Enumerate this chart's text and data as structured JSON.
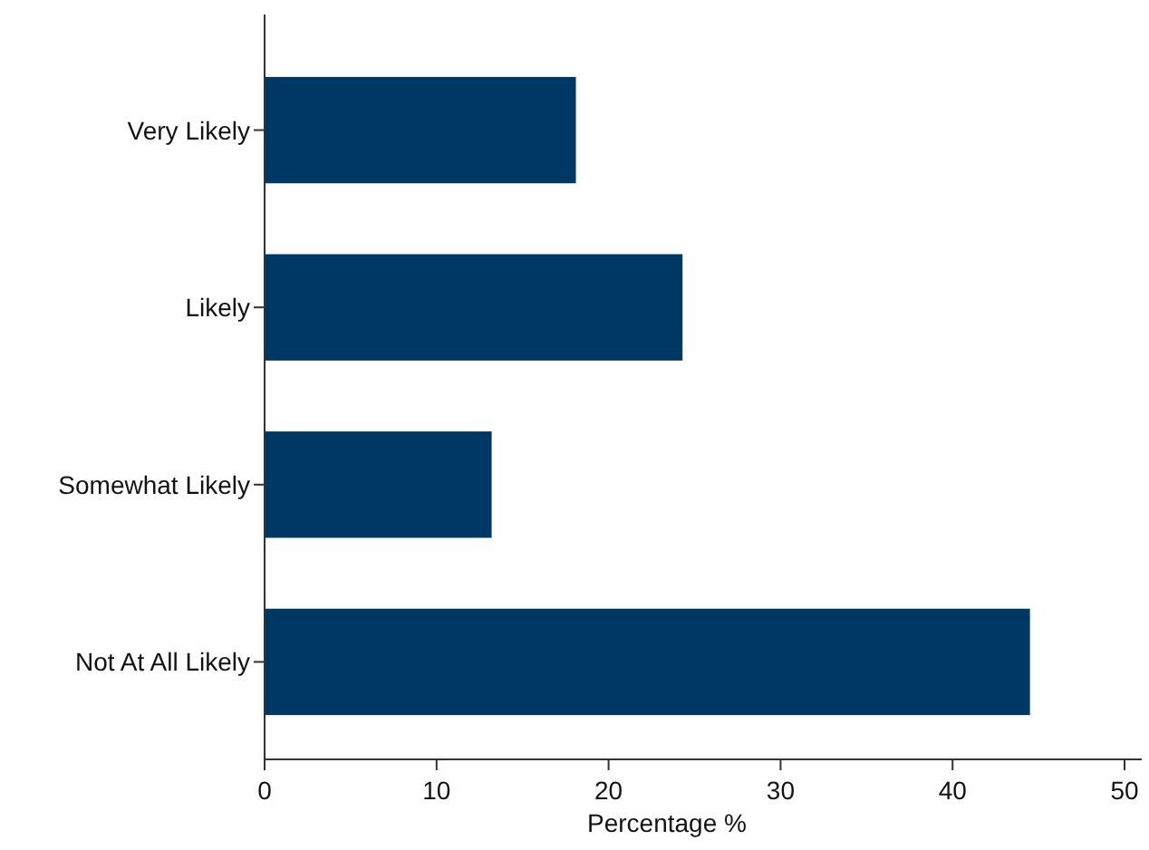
{
  "chart_data": {
    "type": "bar",
    "orientation": "horizontal",
    "xlabel": "Percentage %",
    "categories": [
      "Very Likely",
      "Likely",
      "Somewhat Likely",
      "Not At All Likely"
    ],
    "values": [
      18.1,
      24.3,
      13.2,
      44.5
    ],
    "color": "#003865",
    "xlim": [
      0,
      51
    ],
    "xticks": [
      0,
      10,
      20,
      30,
      40,
      50
    ],
    "grid": false
  }
}
